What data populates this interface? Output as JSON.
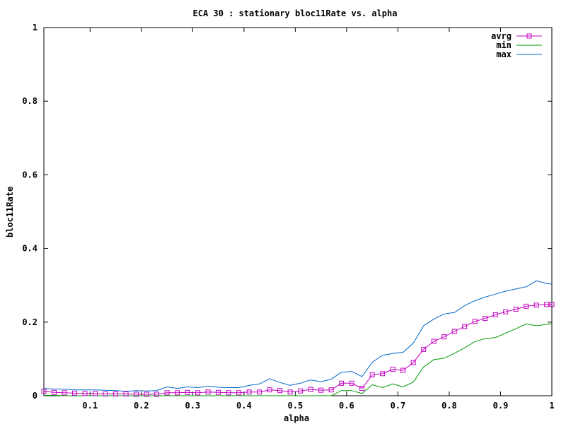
{
  "chart_data": {
    "type": "line",
    "title": "ECA 30 : stationary bloc11Rate vs. alpha",
    "xlabel": "alpha",
    "ylabel": "bloc11Rate",
    "xlim": [
      0.01,
      1.0
    ],
    "ylim": [
      0,
      1
    ],
    "xticks": [
      {
        "value": 0.1,
        "label": "0.1"
      },
      {
        "value": 0.2,
        "label": "0.2"
      },
      {
        "value": 0.3,
        "label": "0.3"
      },
      {
        "value": 0.4,
        "label": "0.4"
      },
      {
        "value": 0.5,
        "label": "0.5"
      },
      {
        "value": 0.6,
        "label": "0.6"
      },
      {
        "value": 0.7,
        "label": "0.7"
      },
      {
        "value": 0.8,
        "label": "0.8"
      },
      {
        "value": 0.9,
        "label": "0.9"
      },
      {
        "value": 1.0,
        "label": "1"
      }
    ],
    "yticks": [
      {
        "value": 0,
        "label": "0"
      },
      {
        "value": 0.2,
        "label": "0.2"
      },
      {
        "value": 0.4,
        "label": "0.4"
      },
      {
        "value": 0.6,
        "label": "0.6"
      },
      {
        "value": 0.8,
        "label": "0.8"
      },
      {
        "value": 1.0,
        "label": "1"
      }
    ],
    "grid": false,
    "legend_position": "top-right",
    "x": [
      0.01,
      0.03,
      0.05,
      0.07,
      0.09,
      0.11,
      0.13,
      0.15,
      0.17,
      0.19,
      0.21,
      0.23,
      0.25,
      0.27,
      0.29,
      0.31,
      0.33,
      0.35,
      0.37,
      0.39,
      0.41,
      0.43,
      0.45,
      0.47,
      0.49,
      0.51,
      0.53,
      0.55,
      0.57,
      0.59,
      0.61,
      0.63,
      0.65,
      0.67,
      0.69,
      0.71,
      0.73,
      0.75,
      0.77,
      0.79,
      0.81,
      0.83,
      0.85,
      0.87,
      0.89,
      0.91,
      0.93,
      0.95,
      0.97,
      0.99,
      1.0
    ],
    "series": [
      {
        "name": "avrg",
        "color": "#c000c0",
        "marker": "square",
        "values": [
          0.012,
          0.009,
          0.008,
          0.007,
          0.006,
          0.006,
          0.005,
          0.005,
          0.005,
          0.004,
          0.004,
          0.004,
          0.008,
          0.008,
          0.009,
          0.008,
          0.01,
          0.009,
          0.008,
          0.008,
          0.01,
          0.01,
          0.016,
          0.014,
          0.01,
          0.013,
          0.017,
          0.015,
          0.016,
          0.034,
          0.034,
          0.02,
          0.057,
          0.06,
          0.072,
          0.069,
          0.09,
          0.126,
          0.148,
          0.16,
          0.175,
          0.188,
          0.202,
          0.21,
          0.22,
          0.228,
          0.235,
          0.243,
          0.246,
          0.248,
          0.248
        ]
      },
      {
        "name": "min",
        "color": "#009900",
        "marker": "none",
        "values": [
          0.001,
          0.001,
          0.0,
          0.0,
          0.0,
          0.0,
          0.0,
          0.0,
          0.0,
          0.0,
          0.0,
          0.0,
          0.0,
          0.0,
          0.0,
          0.0,
          0.0,
          0.0,
          0.0,
          0.0,
          0.0,
          0.0,
          0.0,
          0.0,
          0.0,
          0.0,
          0.0,
          0.0,
          0.0,
          0.014,
          0.014,
          0.006,
          0.03,
          0.022,
          0.032,
          0.024,
          0.037,
          0.078,
          0.098,
          0.102,
          0.115,
          0.13,
          0.147,
          0.155,
          0.158,
          0.17,
          0.182,
          0.195,
          0.19,
          0.194,
          0.196
        ]
      },
      {
        "name": "max",
        "color": "#0066cc",
        "marker": "none",
        "values": [
          0.02,
          0.018,
          0.018,
          0.016,
          0.016,
          0.016,
          0.015,
          0.014,
          0.012,
          0.014,
          0.013,
          0.014,
          0.024,
          0.02,
          0.024,
          0.022,
          0.026,
          0.023,
          0.022,
          0.022,
          0.028,
          0.032,
          0.046,
          0.036,
          0.028,
          0.034,
          0.043,
          0.038,
          0.045,
          0.064,
          0.066,
          0.052,
          0.091,
          0.11,
          0.115,
          0.118,
          0.143,
          0.19,
          0.208,
          0.222,
          0.226,
          0.245,
          0.258,
          0.268,
          0.276,
          0.284,
          0.29,
          0.296,
          0.312,
          0.305,
          0.303
        ]
      }
    ]
  }
}
